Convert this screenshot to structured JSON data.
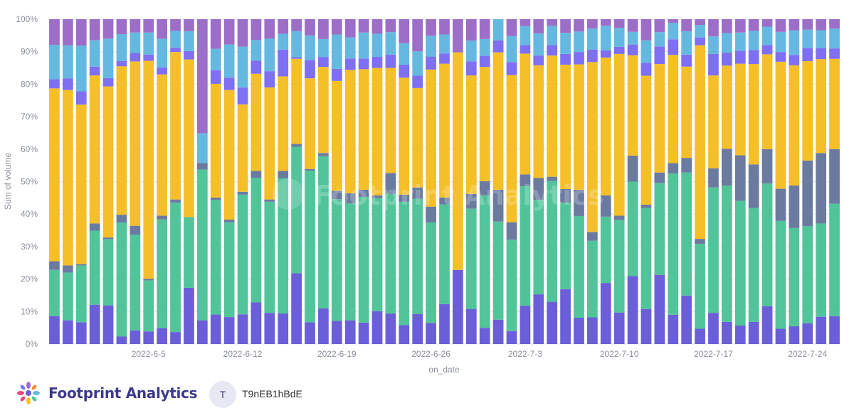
{
  "chart_data": {
    "type": "bar",
    "stacked": "percent",
    "xlabel": "on_date",
    "ylabel": "Sum of volume",
    "ylim": [
      0,
      100
    ],
    "yticks": [
      "0%",
      "10%",
      "20%",
      "30%",
      "40%",
      "50%",
      "60%",
      "70%",
      "80%",
      "90%",
      "100%"
    ],
    "xtick_labels": [
      "2022-6-5",
      "2022-6-12",
      "2022-6-19",
      "2022-6-26",
      "2022-7-3",
      "2022-7-10",
      "2022-7-17",
      "2022-7-24"
    ],
    "xtick_index": [
      7,
      14,
      21,
      28,
      35,
      42,
      49,
      56
    ],
    "x": [
      "2022-5-29",
      "2022-5-30",
      "2022-5-31",
      "2022-6-1",
      "2022-6-2",
      "2022-6-3",
      "2022-6-4",
      "2022-6-5",
      "2022-6-6",
      "2022-6-7",
      "2022-6-8",
      "2022-6-9",
      "2022-6-10",
      "2022-6-11",
      "2022-6-12",
      "2022-6-13",
      "2022-6-14",
      "2022-6-15",
      "2022-6-16",
      "2022-6-17",
      "2022-6-18",
      "2022-6-19",
      "2022-6-20",
      "2022-6-21",
      "2022-6-22",
      "2022-6-23",
      "2022-6-24",
      "2022-6-25",
      "2022-6-26",
      "2022-6-27",
      "2022-6-28",
      "2022-6-29",
      "2022-6-30",
      "2022-7-1",
      "2022-7-2",
      "2022-7-3",
      "2022-7-4",
      "2022-7-5",
      "2022-7-6",
      "2022-7-7",
      "2022-7-8",
      "2022-7-9",
      "2022-7-10",
      "2022-7-11",
      "2022-7-12",
      "2022-7-13",
      "2022-7-14",
      "2022-7-15",
      "2022-7-16",
      "2022-7-17",
      "2022-7-18",
      "2022-7-19",
      "2022-7-20",
      "2022-7-21",
      "2022-7-22",
      "2022-7-23",
      "2022-7-24",
      "2022-7-25",
      "2022-7-26"
    ],
    "series": [
      {
        "color": "#6a5fd9",
        "values": [
          8.6,
          7.3,
          6.7,
          12.1,
          11.9,
          2.3,
          4.2,
          3.9,
          4.9,
          3.7,
          17.3,
          7.3,
          9.1,
          8.3,
          9.2,
          12.8,
          9.6,
          9.4,
          21.8,
          6.7,
          11,
          7.1,
          7.3,
          6.6,
          10.1,
          9.2,
          5.8,
          9.2,
          6.5,
          12.3,
          22.8,
          10.8,
          5,
          7.5,
          4,
          11.8,
          15.3,
          13,
          16.9,
          8.1,
          8.2,
          18.8,
          9.7,
          20.9,
          10.8,
          21.3,
          9,
          14.9,
          4.7,
          9.6,
          6.8,
          5.7,
          6.8,
          11.6,
          4.7,
          5.5,
          6.4,
          8.4,
          8.6
        ]
      },
      {
        "color": "#52c49a",
        "values": [
          14.2,
          14.7,
          17.5,
          22.8,
          20.4,
          35.1,
          29.4,
          15.7,
          33.5,
          39.8,
          21.8,
          46.4,
          35.3,
          29.2,
          37.1,
          38.4,
          34.2,
          41.6,
          38.9,
          46.7,
          46.8,
          37.5,
          36,
          38.7,
          34.8,
          36.1,
          38,
          35.5,
          30.9,
          30.7,
          0,
          30.9,
          40.8,
          30.2,
          28.1,
          36.8,
          29.1,
          37.2,
          26.6,
          31.3,
          23.6,
          20.4,
          28.5,
          29.1,
          31.1,
          28.3,
          43.5,
          37.9,
          26.1,
          38.6,
          42,
          38.4,
          35.1,
          37.8,
          33.2,
          30.2,
          29.9,
          28.7,
          34.6
        ]
      },
      {
        "color": "#6b7ba0",
        "values": [
          2.7,
          2.2,
          0.4,
          2.2,
          0.5,
          2.4,
          2.8,
          0.5,
          1.1,
          1,
          0,
          2,
          0.7,
          0.8,
          0.9,
          2.1,
          0.7,
          2.3,
          0.9,
          0.5,
          1,
          2.6,
          3.1,
          2.2,
          0.9,
          6.3,
          2.2,
          3.5,
          4.9,
          2.1,
          0,
          4.5,
          4.3,
          9.8,
          5.4,
          3.6,
          6.7,
          1.3,
          4.2,
          8.1,
          2.7,
          6.6,
          1.3,
          8,
          1,
          3.2,
          3.2,
          4.5,
          1.5,
          5.9,
          11.3,
          14,
          13.4,
          10.6,
          9.9,
          13.1,
          20.2,
          21.7,
          16.8
        ]
      },
      {
        "color": "#f5bf2a",
        "values": [
          53.2,
          54,
          49.1,
          45.6,
          46.5,
          45.7,
          50.6,
          67.1,
          43.5,
          45.4,
          48.5,
          0,
          35,
          39.9,
          27.1,
          29.9,
          34.5,
          29.1,
          26.2,
          27.9,
          26.5,
          33.8,
          38,
          37.1,
          39.2,
          31.7,
          36,
          30.6,
          42.2,
          41.2,
          67,
          36.5,
          35.2,
          42.3,
          45.3,
          37.2,
          34.7,
          37.3,
          38.3,
          38.6,
          52.3,
          42.4,
          49.8,
          30.9,
          39.7,
          33.4,
          33.3,
          28.1,
          59.5,
          28.6,
          25.6,
          28.2,
          30.9,
          29.2,
          39.1,
          37,
          30.6,
          28.9,
          27.8
        ]
      },
      {
        "color": "#7f6ff2",
        "values": [
          2.8,
          3.6,
          4.1,
          2.7,
          2.6,
          1.6,
          2.6,
          1.9,
          2.1,
          1.3,
          2.6,
          0,
          4.2,
          3.8,
          5.2,
          4,
          5,
          8.2,
          0.5,
          5.6,
          3,
          3.7,
          3.5,
          3.3,
          3.4,
          4,
          4,
          3.8,
          4,
          3.1,
          0,
          4.3,
          3.4,
          3.7,
          4,
          2.6,
          3,
          3.2,
          3.3,
          3.8,
          3.8,
          2.2,
          2.2,
          3.3,
          4,
          5.4,
          4.8,
          3.7,
          2.4,
          6.6,
          4,
          4,
          4.3,
          2.8,
          3,
          3.2,
          4,
          3.4,
          3.2
        ]
      },
      {
        "color": "#65b9e0",
        "values": [
          10.6,
          10.2,
          14.1,
          8.1,
          12.1,
          8.3,
          6.3,
          6.8,
          8.9,
          5.2,
          6.1,
          9.2,
          6.6,
          10.2,
          12.7,
          6.4,
          10,
          4.9,
          8,
          7.6,
          5.6,
          10.6,
          6.5,
          8,
          7.1,
          6.8,
          6.6,
          7.5,
          6.4,
          5.9,
          0,
          6.4,
          5.2,
          6.5,
          8,
          5.9,
          6.8,
          5.9,
          6.5,
          6.3,
          6.5,
          7.6,
          5.8,
          3.9,
          6.9,
          4.4,
          5.1,
          7.2,
          3.8,
          5.4,
          6,
          5.6,
          5.9,
          5.7,
          6.2,
          7.6,
          5.7,
          5.5,
          6.1
        ]
      },
      {
        "color": "#9c6ec8",
        "values": [
          7.9,
          8,
          8.1,
          6.5,
          6,
          4.6,
          4.1,
          4.1,
          6,
          3.6,
          3.7,
          35.1,
          9.1,
          7.8,
          8.5,
          6.4,
          6,
          4.5,
          3.7,
          5,
          6.1,
          4.7,
          5.6,
          4.1,
          4.5,
          3.9,
          7.4,
          9.9,
          5.1,
          4.7,
          10.2,
          6.6,
          6.1,
          0,
          5.2,
          2.1,
          4.4,
          2.1,
          4.2,
          3.8,
          2.9,
          2,
          2.7,
          3.9,
          6.5,
          4,
          1.1,
          3.7,
          1.8,
          5.3,
          4.3,
          4.1,
          3.6,
          2.3,
          3.9,
          3.4,
          3.2,
          3.4,
          2.9
        ]
      }
    ]
  },
  "branding": {
    "name": "Footprint Analytics",
    "logo": "footprint-flower-icon",
    "watermark_text": "Footprint Analytics"
  },
  "user": {
    "initial": "T",
    "name": "T9nEB1hBdE"
  },
  "colors": {
    "axis_text": "#8a8f99",
    "grid": "#e4e6eb",
    "brand": "#3d3a8c"
  }
}
